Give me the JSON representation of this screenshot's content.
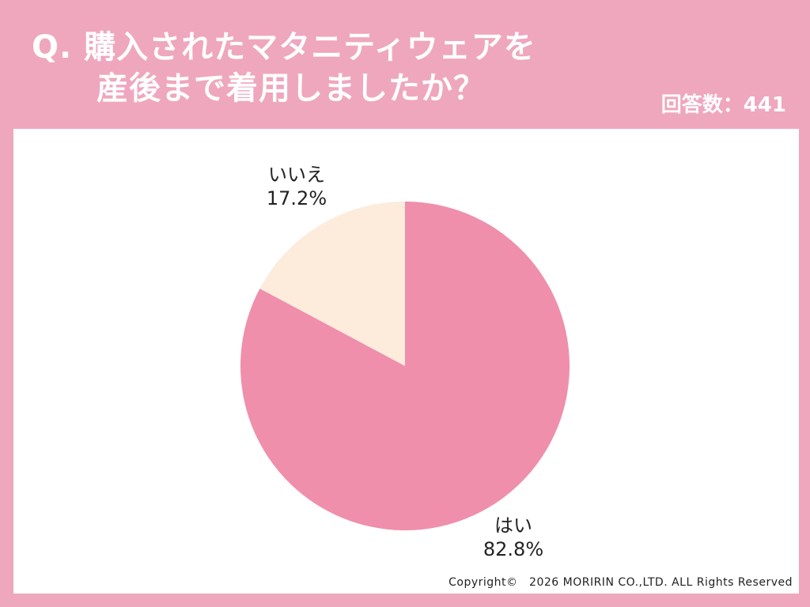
{
  "title": {
    "line1": "Q. 購入されたマタニティウェアを",
    "line2": "産後まで着用しましたか？"
  },
  "respondents": "回答数：441",
  "copyright": "Copyright©　2026 MORIRIN CO.,LTD. ALL Rights Reserved",
  "colors": {
    "background": "#efa7bd",
    "yes": "#ef8fab",
    "no": "#fdebdb"
  },
  "chart_data": {
    "type": "pie",
    "categories": [
      "はい",
      "いいえ"
    ],
    "values": [
      82.8,
      17.2
    ],
    "value_labels": [
      "82.8%",
      "17.2%"
    ],
    "colors": [
      "#ef8fab",
      "#fdebdb"
    ],
    "legend": "none",
    "start": "top, clockwise"
  }
}
